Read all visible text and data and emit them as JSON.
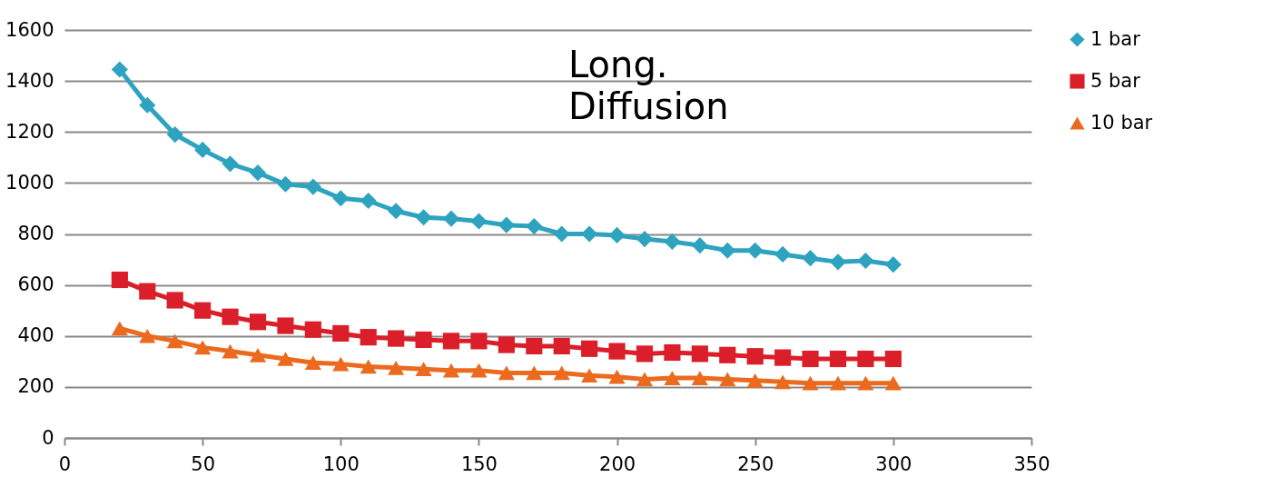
{
  "chart_data": {
    "type": "line",
    "annotations": [
      "Long. Diffusion"
    ],
    "x": [
      20,
      30,
      40,
      50,
      60,
      70,
      80,
      90,
      100,
      110,
      120,
      130,
      140,
      150,
      160,
      170,
      180,
      190,
      200,
      210,
      220,
      230,
      240,
      250,
      260,
      270,
      280,
      290,
      300
    ],
    "series": [
      {
        "name": "1 bar",
        "color": "#2ea3c0",
        "marker": "diamond",
        "values": [
          1445,
          1305,
          1190,
          1130,
          1075,
          1040,
          995,
          985,
          940,
          930,
          890,
          865,
          860,
          850,
          835,
          830,
          800,
          800,
          795,
          780,
          770,
          755,
          735,
          735,
          720,
          705,
          690,
          695,
          680
        ]
      },
      {
        "name": "5 bar",
        "color": "#da1f2a",
        "marker": "square",
        "values": [
          620,
          575,
          540,
          500,
          475,
          455,
          440,
          425,
          410,
          395,
          390,
          385,
          380,
          380,
          365,
          360,
          360,
          350,
          340,
          330,
          335,
          330,
          325,
          320,
          315,
          310,
          310,
          310,
          310
        ]
      },
      {
        "name": "10 bar",
        "color": "#eb6a1e",
        "marker": "triangle",
        "values": [
          430,
          400,
          380,
          355,
          340,
          325,
          310,
          295,
          290,
          280,
          275,
          270,
          265,
          265,
          255,
          255,
          255,
          245,
          240,
          230,
          235,
          235,
          230,
          225,
          220,
          215,
          215,
          215,
          215
        ]
      }
    ],
    "xlim": [
      0,
      350
    ],
    "xticks": [
      0,
      50,
      100,
      150,
      200,
      250,
      300,
      350
    ],
    "ylim": [
      0,
      1600
    ],
    "yticks": [
      0,
      200,
      400,
      600,
      800,
      1000,
      1200,
      1400,
      1600
    ],
    "grid": "y",
    "legend": "right"
  }
}
